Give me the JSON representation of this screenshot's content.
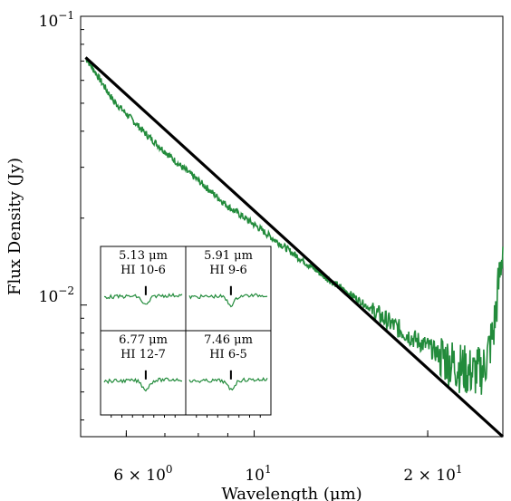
{
  "chart_data": {
    "type": "line",
    "xlabel": "Wavelength (μm)",
    "ylabel": "Flux Density (Jy)",
    "x_scale": "log",
    "y_scale": "log",
    "xlim": [
      5.0,
      27.0
    ],
    "ylim": [
      0.0035,
      0.1
    ],
    "x_ticks": [
      {
        "value": 6,
        "label": "6 × 10^0"
      },
      {
        "value": 10,
        "label": "10^1"
      },
      {
        "value": 20,
        "label": "2 × 10^1"
      }
    ],
    "y_ticks": [
      {
        "value": 0.01,
        "label": "10^−2"
      },
      {
        "value": 0.1,
        "label": "10^−1"
      }
    ],
    "colors": {
      "spectrum": "#228b3b",
      "model": "#000000"
    },
    "series": [
      {
        "kind": "spectrum",
        "x": [
          5.1,
          5.3,
          5.5,
          5.7,
          6.0,
          6.5,
          7.0,
          7.5,
          8.0,
          9.0,
          10.0,
          11.0,
          12.0,
          13.5,
          15.0,
          17.0,
          19.0,
          20.0,
          21.0,
          22.0,
          23.0,
          24.0,
          25.0,
          26.0,
          27.0
        ],
        "y": [
          0.072,
          0.064,
          0.057,
          0.051,
          0.046,
          0.039,
          0.034,
          0.03,
          0.027,
          0.022,
          0.019,
          0.0165,
          0.0145,
          0.0122,
          0.0106,
          0.0088,
          0.0076,
          0.0072,
          0.0067,
          0.0063,
          0.006,
          0.0058,
          0.006,
          0.008,
          0.016
        ]
      },
      {
        "kind": "model",
        "x": [
          5.1,
          27.0
        ],
        "y": [
          0.072,
          0.0035
        ]
      }
    ],
    "insets": [
      {
        "wavelength": "5.13 μm",
        "line": "HI 10-6"
      },
      {
        "wavelength": "5.91 μm",
        "line": "HI 9-6"
      },
      {
        "wavelength": "6.77 μm",
        "line": "HI 12-7"
      },
      {
        "wavelength": "7.46 μm",
        "line": "HI 6-5"
      }
    ]
  }
}
